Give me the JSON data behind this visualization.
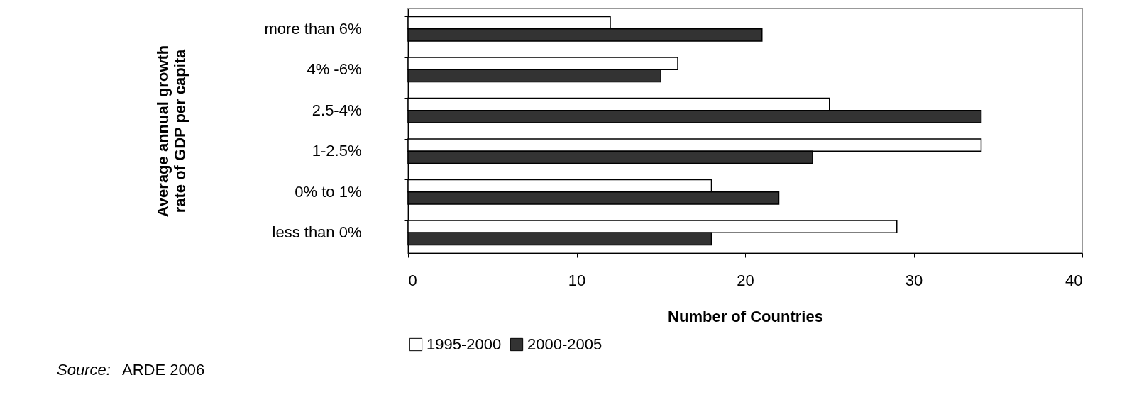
{
  "chart_data": {
    "type": "bar",
    "orientation": "horizontal",
    "categories": [
      "more than 6%",
      "4% -6%",
      "2.5-4%",
      "1-2.5%",
      "0% to 1%",
      "less than 0%"
    ],
    "series": [
      {
        "name": "1995-2000",
        "color": "#ffffff",
        "values": [
          12,
          16,
          25,
          34,
          18,
          29
        ]
      },
      {
        "name": "2000-2005",
        "color": "#333333",
        "values": [
          21,
          15,
          34,
          24,
          22,
          18
        ]
      }
    ],
    "xlabel": "Number of Countries",
    "ylabel": "Average annual growth rate of GDP per capita",
    "xlim": [
      0,
      40
    ],
    "xticks": [
      0,
      10,
      20,
      30,
      40
    ],
    "grid": false,
    "legend": "bottom",
    "annotations": [
      "Source: ARDE 2006"
    ]
  }
}
